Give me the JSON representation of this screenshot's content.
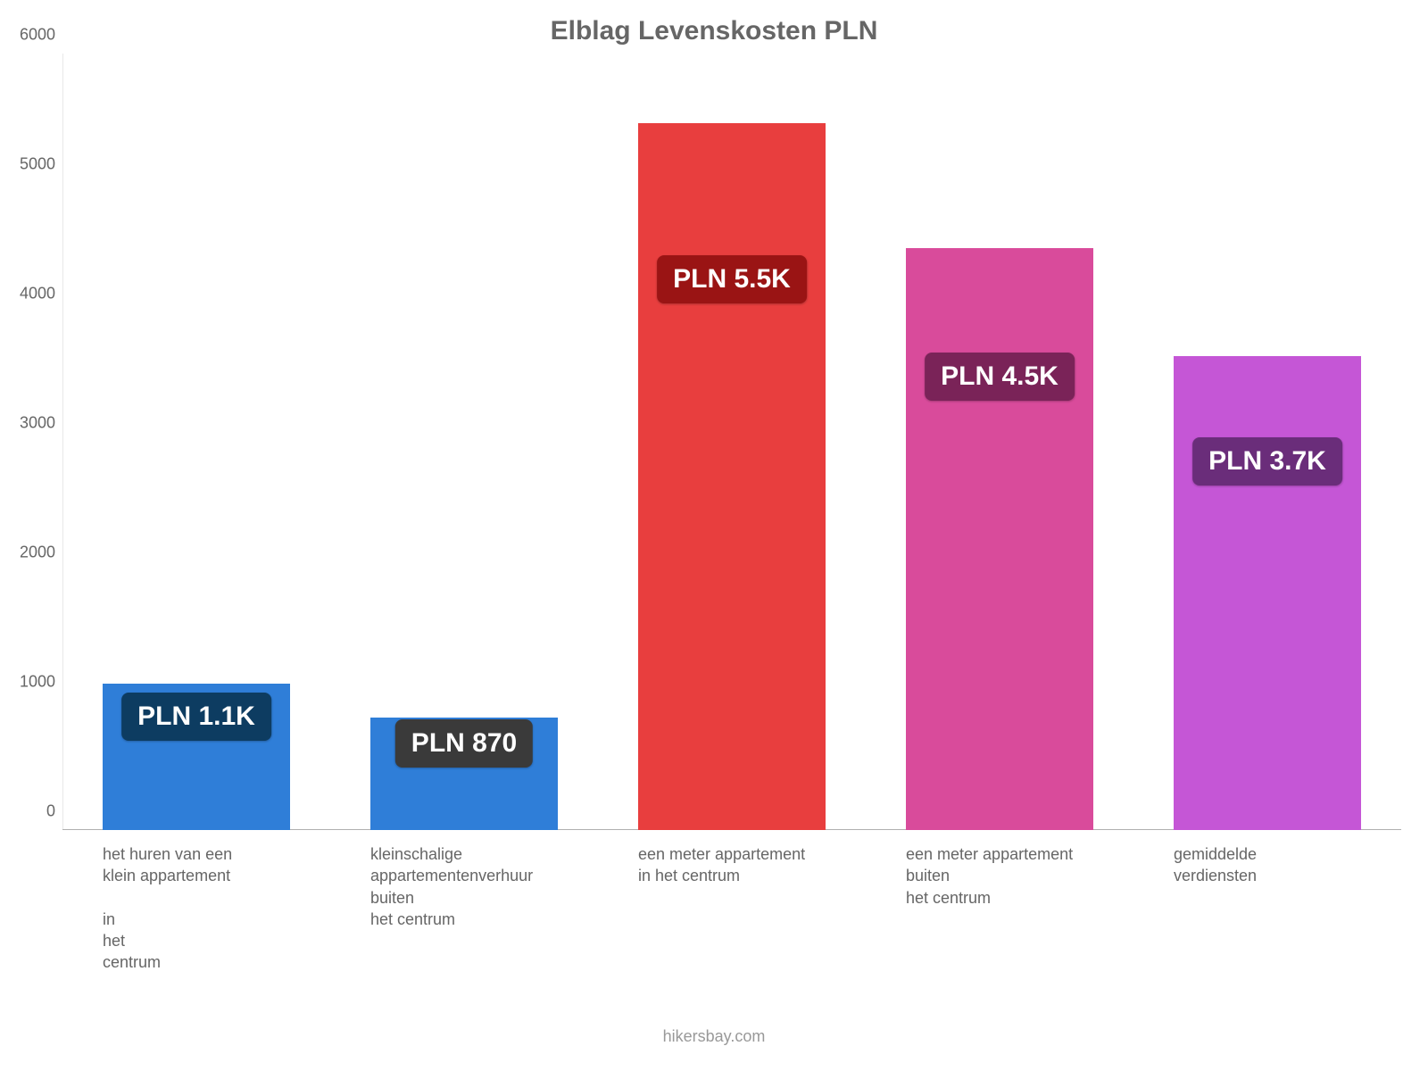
{
  "chart": {
    "type": "bar",
    "title": "Elblag Levenskosten PLN",
    "title_color": "#666666",
    "title_fontsize": 30,
    "title_fontweight": "bold",
    "background_color": "#ffffff",
    "axis_label_color": "#666666",
    "axis_label_fontsize": 18,
    "category_label_fontsize": 18,
    "attribution": "hikersbay.com",
    "attribution_color": "#999999",
    "ylim": [
      0,
      6000
    ],
    "ytick_step": 1000,
    "yticks": [
      0,
      1000,
      2000,
      3000,
      4000,
      5000,
      6000
    ],
    "bar_width_ratio": 0.7,
    "categories": [
      "het huren van een\nklein appartement\n\nin\nhet\ncentrum",
      "kleinschalige\nappartementenverhuur\nbuiten\nhet centrum",
      "een meter appartement\nin het centrum",
      "een meter appartement\nbuiten\nhet centrum",
      "gemiddelde\nverdiensten"
    ],
    "values": [
      1130,
      870,
      5460,
      4500,
      3660
    ],
    "value_labels": [
      "PLN 1.1K",
      "PLN 870",
      "PLN 5.5K",
      "PLN 4.5K",
      "PLN 3.7K"
    ],
    "bar_colors": [
      "#2f7ed8",
      "#2f7ed8",
      "#e83e3e",
      "#d94b9b",
      "#c556d6"
    ],
    "badge_colors": [
      "#0d3c61",
      "#3a3a3a",
      "#9a1414",
      "#7a2358",
      "#6a2d7a"
    ],
    "badge_text_color": "#ffffff",
    "badge_fontsize": 30,
    "value_badge_y_offset": 0.78,
    "baseline_color": "#b0b0b0",
    "yaxis_line_color": "#e8e8e8"
  }
}
